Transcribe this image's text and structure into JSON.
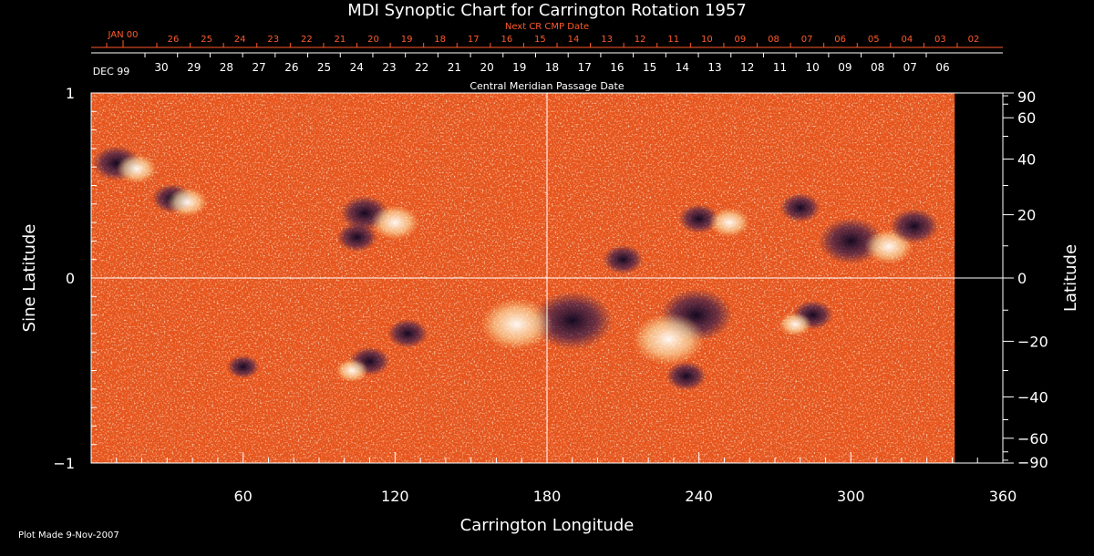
{
  "title": "MDI Synoptic Chart for Carrington Rotation 1957",
  "footer": "Plot Made  9-Nov-2007",
  "colors": {
    "background": "#000000",
    "axis": "#ffffff",
    "next_scale": "#ff5a2a",
    "field_mid": "#f05a14",
    "field_pos": "#ffffff",
    "field_neg": "#1a1040"
  },
  "chart_data": {
    "type": "heatmap",
    "title": "MDI Synoptic Chart for Carrington Rotation 1957",
    "xlabel": "Carrington Longitude",
    "ylabel": "Sine Latitude",
    "y2label": "Latitude",
    "xlim": [
      0,
      360
    ],
    "ylim": [
      -1,
      1
    ],
    "x_ticks": [
      60,
      120,
      180,
      240,
      300,
      360
    ],
    "y_ticks": [
      {
        "v": 1,
        "label": "1"
      },
      {
        "v": 0,
        "label": "0"
      },
      {
        "v": -1,
        "label": "−1"
      }
    ],
    "lat_ticks": [
      90,
      60,
      40,
      20,
      0,
      -20,
      -40,
      -60,
      -90
    ],
    "lat_tick_labels": [
      "90",
      "60",
      "40",
      "20",
      "0",
      "−20",
      "−40",
      "−60",
      "−90"
    ],
    "crosshair": {
      "x": 180,
      "y": 0
    },
    "cmp_axis": {
      "label": "Central Meridian Passage Date",
      "month_labels": [
        {
          "text": "DEC 99",
          "day": 31.5
        }
      ],
      "days": [
        "30",
        "29",
        "28",
        "27",
        "26",
        "25",
        "24",
        "23",
        "22",
        "21",
        "20",
        "19",
        "18",
        "17",
        "16",
        "15",
        "14",
        "13",
        "12",
        "11",
        "10",
        "09",
        "08",
        "07",
        "06"
      ],
      "day_start": 30
    },
    "next_axis": {
      "label": "Next CR CMP Date",
      "month_labels": [
        {
          "text": "JAN 00",
          "day": 27.3
        }
      ],
      "days": [
        "26",
        "25",
        "24",
        "23",
        "22",
        "21",
        "20",
        "19",
        "18",
        "17",
        "16",
        "15",
        "14",
        "13",
        "12",
        "11",
        "10",
        "09",
        "08",
        "07",
        "06",
        "05",
        "04",
        "03",
        "02"
      ],
      "day_start": 26
    },
    "data_extent_longitude": [
      0,
      341
    ],
    "regions": [
      {
        "lon": 10,
        "lat": 0.62,
        "r": 6,
        "sign": -1
      },
      {
        "lon": 18,
        "lat": 0.59,
        "r": 5,
        "sign": 1
      },
      {
        "lon": 32,
        "lat": 0.43,
        "r": 5,
        "sign": -1
      },
      {
        "lon": 38,
        "lat": 0.41,
        "r": 5,
        "sign": 1
      },
      {
        "lon": 108,
        "lat": 0.35,
        "r": 6,
        "sign": -1
      },
      {
        "lon": 120,
        "lat": 0.3,
        "r": 6,
        "sign": 1
      },
      {
        "lon": 105,
        "lat": 0.22,
        "r": 5,
        "sign": -1
      },
      {
        "lon": 190,
        "lat": -0.23,
        "r": 10,
        "sign": -1
      },
      {
        "lon": 168,
        "lat": -0.25,
        "r": 9,
        "sign": 1
      },
      {
        "lon": 125,
        "lat": -0.3,
        "r": 5,
        "sign": -1
      },
      {
        "lon": 110,
        "lat": -0.45,
        "r": 5,
        "sign": -1
      },
      {
        "lon": 103,
        "lat": -0.5,
        "r": 4,
        "sign": 1
      },
      {
        "lon": 60,
        "lat": -0.48,
        "r": 4,
        "sign": -1
      },
      {
        "lon": 239,
        "lat": -0.2,
        "r": 9,
        "sign": -1
      },
      {
        "lon": 228,
        "lat": -0.33,
        "r": 9,
        "sign": 1
      },
      {
        "lon": 235,
        "lat": -0.53,
        "r": 5,
        "sign": -1
      },
      {
        "lon": 240,
        "lat": 0.32,
        "r": 5,
        "sign": -1
      },
      {
        "lon": 252,
        "lat": 0.3,
        "r": 5,
        "sign": 1
      },
      {
        "lon": 210,
        "lat": 0.1,
        "r": 5,
        "sign": -1
      },
      {
        "lon": 300,
        "lat": 0.2,
        "r": 8,
        "sign": -1
      },
      {
        "lon": 315,
        "lat": 0.17,
        "r": 6,
        "sign": 1
      },
      {
        "lon": 325,
        "lat": 0.28,
        "r": 6,
        "sign": -1
      },
      {
        "lon": 280,
        "lat": 0.38,
        "r": 5,
        "sign": -1
      },
      {
        "lon": 285,
        "lat": -0.2,
        "r": 5,
        "sign": -1
      },
      {
        "lon": 278,
        "lat": -0.25,
        "r": 4,
        "sign": 1
      }
    ]
  }
}
